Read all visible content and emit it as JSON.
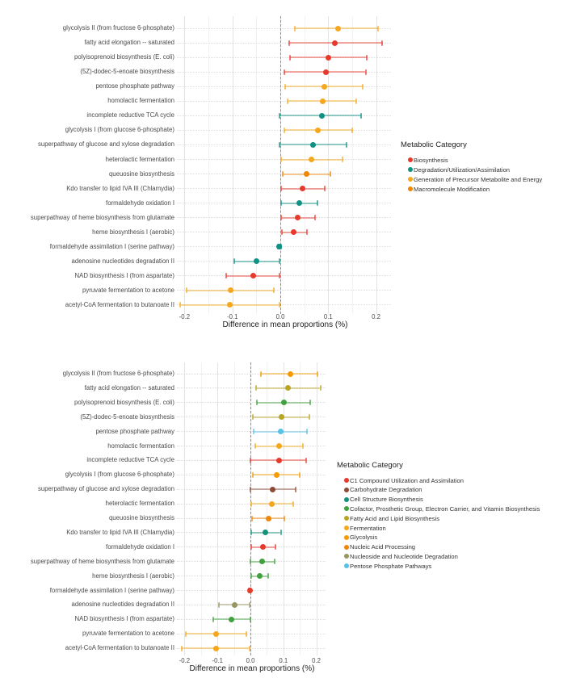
{
  "chart_data": [
    {
      "type": "scatter",
      "subtype": "dot-whisker-forest-plot",
      "title": "",
      "xlabel": "Difference in mean proportions (%)",
      "xlim": [
        -0.22,
        0.23
      ],
      "grid": "major 0.1 / minor 0.05, light grey on white",
      "zero_reference_line": "dashed grey at 0.0",
      "legend_title": "Metabolic Category",
      "legend_position": "right",
      "x_ticks": [
        {
          "v": -0.2,
          "label": "-0.2"
        },
        {
          "v": -0.1,
          "label": "-0.1"
        },
        {
          "v": 0.0,
          "label": "0.0"
        },
        {
          "v": 0.1,
          "label": "0.1"
        },
        {
          "v": 0.2,
          "label": "0.2"
        }
      ],
      "categories": [
        {
          "name": "Biosynthesis",
          "color": "#E8392D"
        },
        {
          "name": "Degradation/Utilization/Assimilation",
          "color": "#0F9183"
        },
        {
          "name": "Generation of Precursor Metabolite and Energy",
          "color": "#F5A81E"
        },
        {
          "name": "Macromolecule Modification",
          "color": "#EE8608"
        }
      ],
      "rows": [
        {
          "label": "glycolysis II (from fructose 6-phosphate)",
          "category": "Generation of Precursor Metabolite and Energy",
          "value": 0.12,
          "ci_low": 0.031,
          "ci_high": 0.204
        },
        {
          "label": "fatty acid elongation -- saturated",
          "category": "Biosynthesis",
          "value": 0.114,
          "ci_low": 0.018,
          "ci_high": 0.212
        },
        {
          "label": "polyisoprenoid biosynthesis (E. coli)",
          "category": "Biosynthesis",
          "value": 0.101,
          "ci_low": 0.02,
          "ci_high": 0.181
        },
        {
          "label": "(5Z)-dodec-5-enoate biosynthesis",
          "category": "Biosynthesis",
          "value": 0.095,
          "ci_low": 0.008,
          "ci_high": 0.178
        },
        {
          "label": "pentose phosphate pathway",
          "category": "Generation of Precursor Metabolite and Energy",
          "value": 0.092,
          "ci_low": 0.01,
          "ci_high": 0.172
        },
        {
          "label": "homolactic fermentation",
          "category": "Generation of Precursor Metabolite and Energy",
          "value": 0.088,
          "ci_low": 0.015,
          "ci_high": 0.158
        },
        {
          "label": "incomplete reductive TCA cycle",
          "category": "Degradation/Utilization/Assimilation",
          "value": 0.086,
          "ci_low": -0.001,
          "ci_high": 0.168
        },
        {
          "label": "glycolysis I (from glucose 6-phosphate)",
          "category": "Generation of Precursor Metabolite and Energy",
          "value": 0.079,
          "ci_low": 0.008,
          "ci_high": 0.15
        },
        {
          "label": "superpathway of glucose and xylose degradation",
          "category": "Degradation/Utilization/Assimilation",
          "value": 0.068,
          "ci_low": -0.001,
          "ci_high": 0.138
        },
        {
          "label": "heterolactic fermentation",
          "category": "Generation of Precursor Metabolite and Energy",
          "value": 0.064,
          "ci_low": 0.002,
          "ci_high": 0.13
        },
        {
          "label": "queuosine biosynthesis",
          "category": "Macromolecule Modification",
          "value": 0.054,
          "ci_low": 0.005,
          "ci_high": 0.104
        },
        {
          "label": "Kdo transfer to lipid IVA III (Chlamydia)",
          "category": "Biosynthesis",
          "value": 0.046,
          "ci_low": 0.002,
          "ci_high": 0.092
        },
        {
          "label": "formaldehyde oxidation I",
          "category": "Degradation/Utilization/Assimilation",
          "value": 0.039,
          "ci_low": 0.002,
          "ci_high": 0.077
        },
        {
          "label": "superpathway of heme biosynthesis from glutamate",
          "category": "Biosynthesis",
          "value": 0.036,
          "ci_low": 0.001,
          "ci_high": 0.073
        },
        {
          "label": "heme biosynthesis I (aerobic)",
          "category": "Biosynthesis",
          "value": 0.028,
          "ci_low": 0.003,
          "ci_high": 0.055
        },
        {
          "label": "formaldehyde assimilation I (serine pathway)",
          "category": "Degradation/Utilization/Assimilation",
          "value": -0.002,
          "ci_low": -0.005,
          "ci_high": 0.001
        },
        {
          "label": "adenosine nucleotides degradation II",
          "category": "Degradation/Utilization/Assimilation",
          "value": -0.049,
          "ci_low": -0.096,
          "ci_high": -0.002
        },
        {
          "label": "NAD biosynthesis I (from aspartate)",
          "category": "Biosynthesis",
          "value": -0.057,
          "ci_low": -0.113,
          "ci_high": -0.001
        },
        {
          "label": "pyruvate fermentation to acetone",
          "category": "Generation of Precursor Metabolite and Energy",
          "value": -0.104,
          "ci_low": -0.196,
          "ci_high": -0.013
        },
        {
          "label": "acetyl-CoA fermentation to butanoate II",
          "category": "Generation of Precursor Metabolite and Energy",
          "value": -0.105,
          "ci_low": -0.209,
          "ci_high": -0.002
        }
      ]
    },
    {
      "type": "scatter",
      "subtype": "dot-whisker-forest-plot",
      "title": "",
      "xlabel": "Difference in mean proportions (%)",
      "xlim": [
        -0.22,
        0.23
      ],
      "grid": "major 0.1 / minor 0.05, light grey on white",
      "zero_reference_line": "dashed grey at 0.0",
      "legend_title": "Metabolic Category",
      "legend_position": "right",
      "x_ticks": [
        {
          "v": -0.2,
          "label": "-0.2"
        },
        {
          "v": -0.1,
          "label": "-0.1"
        },
        {
          "v": 0.0,
          "label": "0.0"
        },
        {
          "v": 0.1,
          "label": "0.1"
        },
        {
          "v": 0.2,
          "label": "0.2"
        }
      ],
      "categories": [
        {
          "name": "C1 Compound Utilization and Assimilation",
          "color": "#E8392D"
        },
        {
          "name": "Carbohydrate Degradation",
          "color": "#8E4A38"
        },
        {
          "name": "Cell Structure Biosynthesis",
          "color": "#14917B"
        },
        {
          "name": "Cofactor, Prosthetic Group, Electron Carrier, and Vitamin Biosynthesis",
          "color": "#41A13F"
        },
        {
          "name": "Fatty Acid and Lipid Biosynthesis",
          "color": "#B8A525"
        },
        {
          "name": "Fermentation",
          "color": "#F5A81E"
        },
        {
          "name": "Glycolysis",
          "color": "#F59B05"
        },
        {
          "name": "Nucleic Acid Processing",
          "color": "#EE8608"
        },
        {
          "name": "Nucleoside and Nucleotide Degradation",
          "color": "#99955F"
        },
        {
          "name": "Pentose Phosphate Pathways",
          "color": "#58C1E8"
        }
      ],
      "rows": [
        {
          "label": "glycolysis II (from fructose 6-phosphate)",
          "category": "Glycolysis",
          "value": 0.12,
          "ci_low": 0.031,
          "ci_high": 0.204
        },
        {
          "label": "fatty acid elongation -- saturated",
          "category": "Fatty Acid and Lipid Biosynthesis",
          "value": 0.114,
          "ci_low": 0.018,
          "ci_high": 0.212
        },
        {
          "label": "polyisoprenoid biosynthesis (E. coli)",
          "category": "Cofactor, Prosthetic Group, Electron Carrier, and Vitamin Biosynthesis",
          "value": 0.101,
          "ci_low": 0.02,
          "ci_high": 0.181
        },
        {
          "label": "(5Z)-dodec-5-enoate biosynthesis",
          "category": "Fatty Acid and Lipid Biosynthesis",
          "value": 0.095,
          "ci_low": 0.008,
          "ci_high": 0.178
        },
        {
          "label": "pentose phosphate pathway",
          "category": "Pentose Phosphate Pathways",
          "value": 0.092,
          "ci_low": 0.01,
          "ci_high": 0.172
        },
        {
          "label": "homolactic fermentation",
          "category": "Fermentation",
          "value": 0.088,
          "ci_low": 0.015,
          "ci_high": 0.158
        },
        {
          "label": "incomplete reductive TCA cycle",
          "category": "C1 Compound Utilization and Assimilation",
          "value": 0.086,
          "ci_low": -0.001,
          "ci_high": 0.168
        },
        {
          "label": "glycolysis I (from glucose 6-phosphate)",
          "category": "Glycolysis",
          "value": 0.079,
          "ci_low": 0.008,
          "ci_high": 0.15
        },
        {
          "label": "superpathway of glucose and xylose degradation",
          "category": "Carbohydrate Degradation",
          "value": 0.068,
          "ci_low": -0.001,
          "ci_high": 0.138
        },
        {
          "label": "heterolactic fermentation",
          "category": "Fermentation",
          "value": 0.064,
          "ci_low": 0.002,
          "ci_high": 0.13
        },
        {
          "label": "queuosine biosynthesis",
          "category": "Nucleic Acid Processing",
          "value": 0.054,
          "ci_low": 0.005,
          "ci_high": 0.104
        },
        {
          "label": "Kdo transfer to lipid IVA III (Chlamydia)",
          "category": "Cell Structure Biosynthesis",
          "value": 0.046,
          "ci_low": 0.002,
          "ci_high": 0.092
        },
        {
          "label": "formaldehyde oxidation I",
          "category": "C1 Compound Utilization and Assimilation",
          "value": 0.039,
          "ci_low": 0.002,
          "ci_high": 0.077
        },
        {
          "label": "superpathway of heme biosynthesis from glutamate",
          "category": "Cofactor, Prosthetic Group, Electron Carrier, and Vitamin Biosynthesis",
          "value": 0.036,
          "ci_low": 0.001,
          "ci_high": 0.073
        },
        {
          "label": "heme biosynthesis I (aerobic)",
          "category": "Cofactor, Prosthetic Group, Electron Carrier, and Vitamin Biosynthesis",
          "value": 0.028,
          "ci_low": 0.003,
          "ci_high": 0.055
        },
        {
          "label": "formaldehyde assimilation I (serine pathway)",
          "category": "C1 Compound Utilization and Assimilation",
          "value": -0.002,
          "ci_low": -0.005,
          "ci_high": 0.001
        },
        {
          "label": "adenosine nucleotides degradation II",
          "category": "Nucleoside and Nucleotide Degradation",
          "value": -0.049,
          "ci_low": -0.096,
          "ci_high": -0.002
        },
        {
          "label": "NAD biosynthesis I (from aspartate)",
          "category": "Cofactor, Prosthetic Group, Electron Carrier, and Vitamin Biosynthesis",
          "value": -0.057,
          "ci_low": -0.113,
          "ci_high": -0.001
        },
        {
          "label": "pyruvate fermentation to acetone",
          "category": "Fermentation",
          "value": -0.104,
          "ci_low": -0.196,
          "ci_high": -0.013
        },
        {
          "label": "acetyl-CoA fermentation to butanoate II",
          "category": "Fermentation",
          "value": -0.105,
          "ci_low": -0.209,
          "ci_high": -0.002
        }
      ]
    }
  ]
}
